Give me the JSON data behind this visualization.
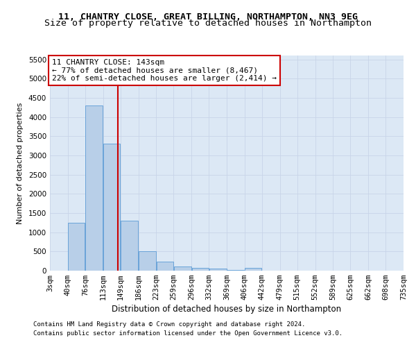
{
  "title1": "11, CHANTRY CLOSE, GREAT BILLING, NORTHAMPTON, NN3 9EG",
  "title2": "Size of property relative to detached houses in Northampton",
  "xlabel": "Distribution of detached houses by size in Northampton",
  "ylabel": "Number of detached properties",
  "footnote1": "Contains HM Land Registry data © Crown copyright and database right 2024.",
  "footnote2": "Contains public sector information licensed under the Open Government Licence v3.0.",
  "annotation_title": "11 CHANTRY CLOSE: 143sqm",
  "annotation_line1": "← 77% of detached houses are smaller (8,467)",
  "annotation_line2": "22% of semi-detached houses are larger (2,414) →",
  "property_size": 143,
  "bar_color": "#b8cfe8",
  "bar_edge_color": "#5b9bd5",
  "vline_color": "#cc0000",
  "annotation_box_edgecolor": "#cc0000",
  "annotation_bg": "#ffffff",
  "grid_color": "#c8d4e8",
  "bg_color": "#dce8f5",
  "bin_labels": [
    "3sqm",
    "40sqm",
    "76sqm",
    "113sqm",
    "149sqm",
    "186sqm",
    "223sqm",
    "259sqm",
    "296sqm",
    "332sqm",
    "369sqm",
    "406sqm",
    "442sqm",
    "479sqm",
    "515sqm",
    "552sqm",
    "589sqm",
    "625sqm",
    "662sqm",
    "698sqm",
    "735sqm"
  ],
  "bin_edges": [
    3,
    40,
    76,
    113,
    149,
    186,
    223,
    259,
    296,
    332,
    369,
    406,
    442,
    479,
    515,
    552,
    589,
    625,
    662,
    698,
    735
  ],
  "bar_heights": [
    0,
    1250,
    4300,
    3300,
    1300,
    500,
    230,
    110,
    80,
    60,
    20,
    70,
    0,
    0,
    0,
    0,
    0,
    0,
    0,
    0,
    0
  ],
  "ylim": [
    0,
    5600
  ],
  "yticks": [
    0,
    500,
    1000,
    1500,
    2000,
    2500,
    3000,
    3500,
    4000,
    4500,
    5000,
    5500
  ],
  "title1_fontsize": 9.5,
  "title2_fontsize": 9.5,
  "xlabel_fontsize": 8.5,
  "ylabel_fontsize": 8.0,
  "tick_fontsize": 7.5,
  "annotation_fontsize": 8.0,
  "footnote_fontsize": 6.5
}
